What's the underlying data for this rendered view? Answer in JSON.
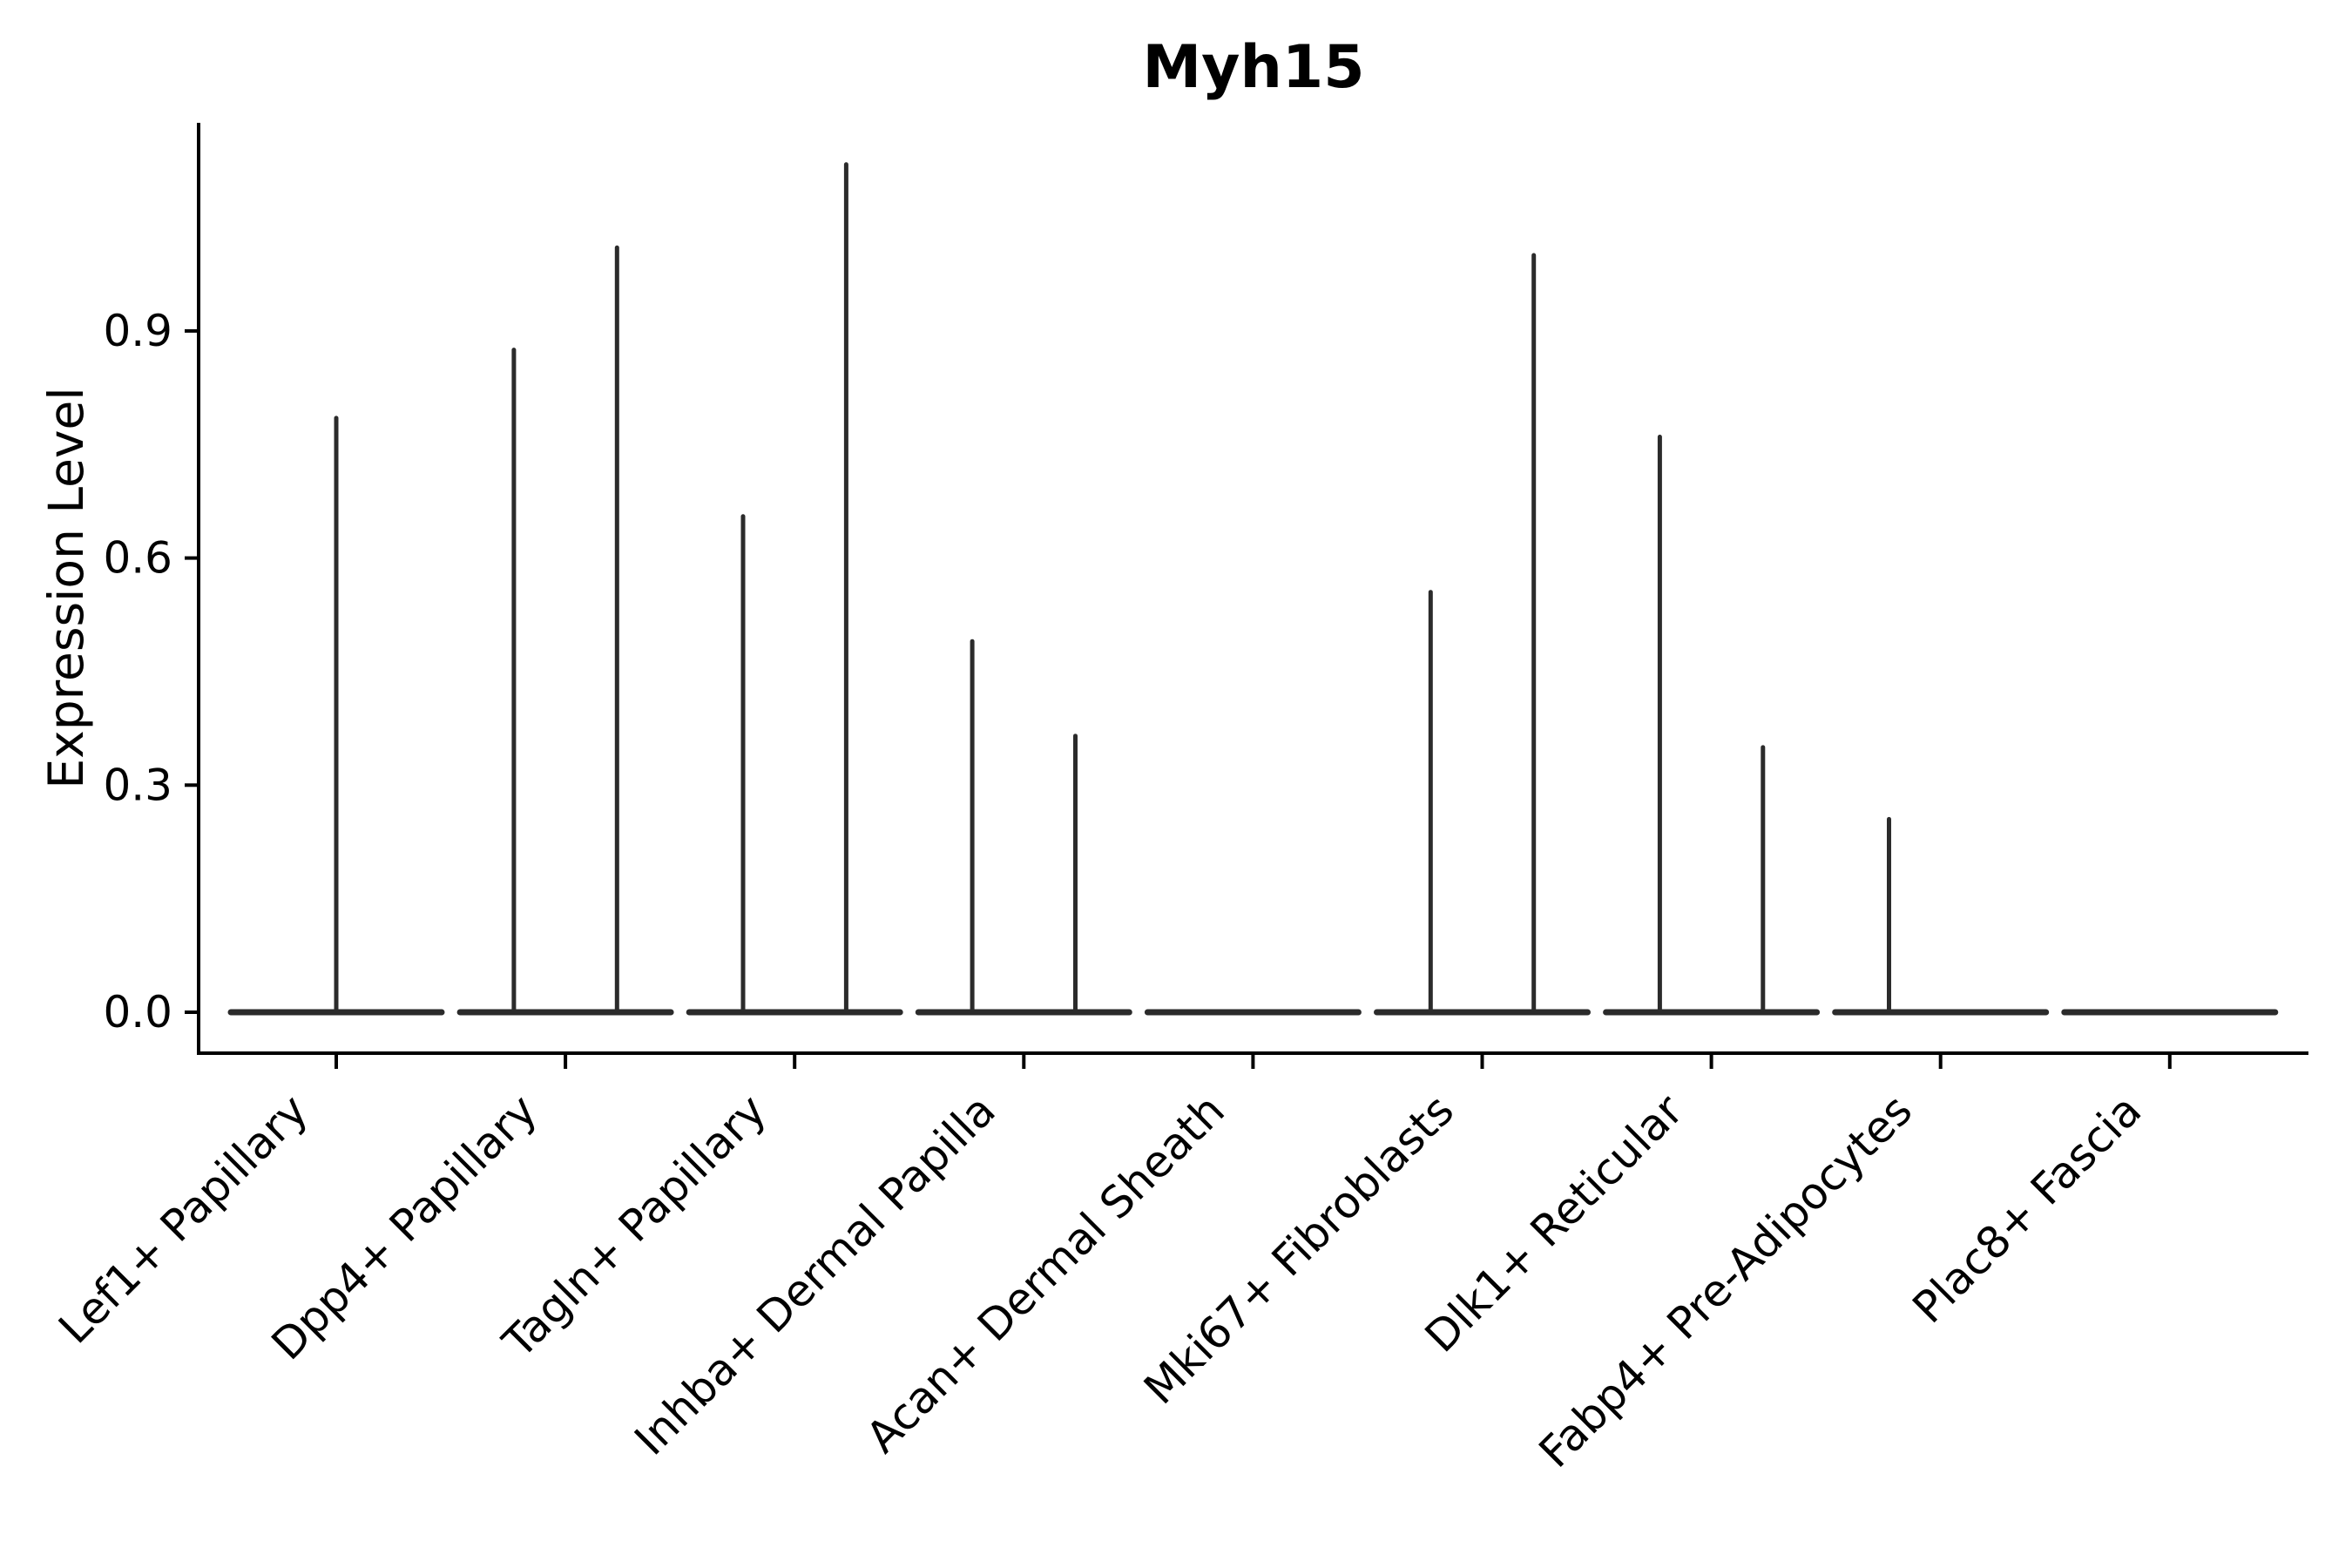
{
  "figure": {
    "background": "#ffffff"
  },
  "chart_data": {
    "type": "violin",
    "title": "Myh15",
    "ylabel": "Expression Level",
    "xlabel": "",
    "ylim": [
      0,
      1.175
    ],
    "yticks": [
      0.0,
      0.3,
      0.6,
      0.9
    ],
    "ytick_labels": [
      "0.0",
      "0.3",
      "0.6",
      "0.9"
    ],
    "grid": false,
    "legend": "none",
    "spines": [
      "left",
      "bottom"
    ],
    "violin_color": "#2b2b2b",
    "axis_color": "#000000",
    "categories": [
      "Lef1+ Papillary",
      "Dpp4+ Papillary",
      "Tagln+ Papillary",
      "Inhba+ Dermal Papilla",
      "Acan+ Dermal Sheath",
      "Mki67+ Fibroblasts",
      "Dlk1+ Reticular",
      "Fabp4+ Pre-Adipocytes",
      "Plac8+ Fascia"
    ],
    "violins": [
      {
        "category": "Lef1+ Papillary",
        "baseline_value": 0.0,
        "spikes": [
          {
            "offset": 0.0,
            "max": 0.785
          }
        ]
      },
      {
        "category": "Dpp4+ Papillary",
        "baseline_value": 0.0,
        "spikes": [
          {
            "offset": -0.225,
            "max": 0.875
          },
          {
            "offset": 0.225,
            "max": 1.01
          }
        ]
      },
      {
        "category": "Tagln+ Papillary",
        "baseline_value": 0.0,
        "spikes": [
          {
            "offset": -0.225,
            "max": 0.655
          },
          {
            "offset": 0.225,
            "max": 1.12
          }
        ]
      },
      {
        "category": "Inhba+ Dermal Papilla",
        "baseline_value": 0.0,
        "spikes": [
          {
            "offset": -0.225,
            "max": 0.49
          },
          {
            "offset": 0.225,
            "max": 0.365
          }
        ]
      },
      {
        "category": "Acan+ Dermal Sheath",
        "baseline_value": 0.0,
        "spikes": []
      },
      {
        "category": "Mki67+ Fibroblasts",
        "baseline_value": 0.0,
        "spikes": [
          {
            "offset": -0.225,
            "max": 0.555
          },
          {
            "offset": 0.225,
            "max": 1.0
          }
        ]
      },
      {
        "category": "Dlk1+ Reticular",
        "baseline_value": 0.0,
        "spikes": [
          {
            "offset": -0.225,
            "max": 0.76
          },
          {
            "offset": 0.225,
            "max": 0.35
          }
        ]
      },
      {
        "category": "Fabp4+ Pre-Adipocytes",
        "baseline_value": 0.0,
        "spikes": [
          {
            "offset": -0.225,
            "max": 0.255
          }
        ]
      },
      {
        "category": "Plac8+ Fascia",
        "baseline_value": 0.0,
        "spikes": []
      }
    ]
  }
}
